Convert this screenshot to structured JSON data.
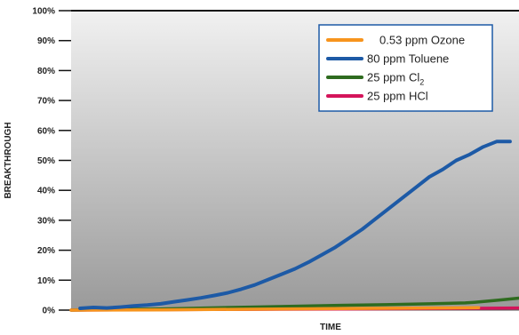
{
  "chart_data": {
    "type": "line",
    "xlabel": "TIME",
    "ylabel": "BREAKTHROUGH",
    "ylim": [
      0,
      100
    ],
    "y_ticks": [
      "0%",
      "10%",
      "20%",
      "30%",
      "40%",
      "50%",
      "60%",
      "70%",
      "80%",
      "90%",
      "100%"
    ],
    "x_axis_tick_labels": "none",
    "x_range_index": [
      0,
      100
    ],
    "grid": "horizontal-ticks-only",
    "background": "vertical gradient light-gray to dark-gray",
    "legend_position": "top-right",
    "series": [
      {
        "name": "0.53 ppm Ozone",
        "color": "#f7941d",
        "x": [
          0,
          20,
          40,
          60,
          80,
          91
        ],
        "y": [
          0.0,
          0.1,
          0.3,
          0.5,
          0.7,
          0.8
        ]
      },
      {
        "name": "80 ppm Toluene",
        "color": "#1d5aa6",
        "x": [
          2,
          5,
          8,
          11,
          14,
          17,
          20,
          23,
          26,
          29,
          32,
          35,
          38,
          41,
          44,
          47,
          50,
          53,
          56,
          59,
          62,
          65,
          68,
          71,
          74,
          77,
          80,
          83,
          86,
          89,
          92,
          95,
          98
        ],
        "y": [
          0.6,
          0.9,
          0.7,
          1.0,
          1.4,
          1.7,
          2.1,
          2.8,
          3.4,
          4.1,
          4.9,
          5.8,
          7.0,
          8.4,
          10.2,
          12.0,
          13.8,
          16.0,
          18.5,
          21.0,
          24.0,
          27.0,
          30.5,
          34.0,
          37.5,
          41.0,
          44.5,
          47.0,
          50.0,
          52.0,
          54.5,
          56.3,
          56.3
        ]
      },
      {
        "name": "25 ppm Cl2",
        "name_display_base": "25 ppm Cl",
        "name_display_sub": "2",
        "color": "#2e6b1f",
        "x": [
          0,
          10,
          20,
          30,
          40,
          50,
          60,
          70,
          80,
          88,
          90,
          93,
          96,
          100
        ],
        "y": [
          0.0,
          0.2,
          0.4,
          0.7,
          1.0,
          1.3,
          1.6,
          1.8,
          2.1,
          2.4,
          2.6,
          3.0,
          3.4,
          4.0
        ]
      },
      {
        "name": "25 ppm HCl",
        "color": "#d4145a",
        "x": [
          0,
          30,
          60,
          90,
          100
        ],
        "y": [
          0.0,
          0.2,
          0.4,
          0.6,
          0.7
        ]
      }
    ]
  }
}
